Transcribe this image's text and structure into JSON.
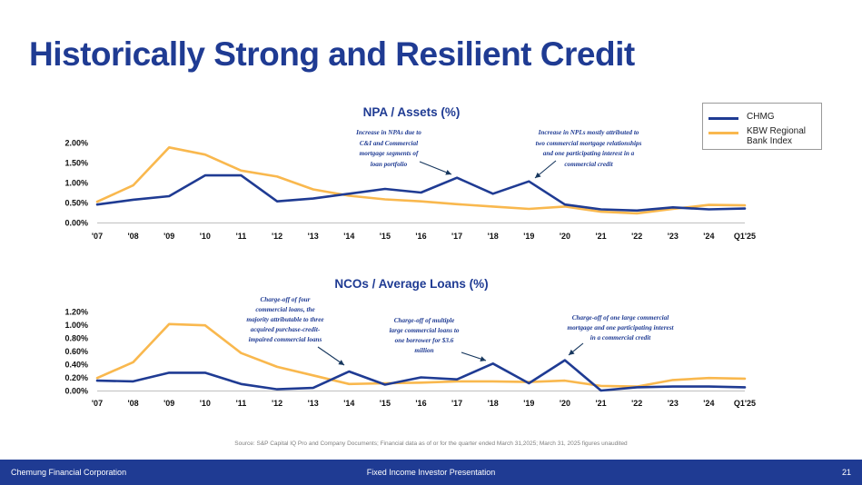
{
  "page": {
    "title": "Historically Strong and Resilient Credit",
    "source": "Source: S&P Capital IQ Pro and Company Documents; Financial data as of or for the quarter ended March 31,2025; March 31, 2025 figures unaudited",
    "footer": {
      "company": "Chemung Financial Corporation",
      "center": "Fixed Income Investor Presentation",
      "page_number": "21"
    },
    "legend": [
      {
        "name": "CHMG",
        "color": "#1F3B93"
      },
      {
        "name": "KBW Regional Bank Index",
        "color": "#F9B84E"
      }
    ]
  },
  "chart_data": [
    {
      "type": "line",
      "title": "NPA / Assets (%)",
      "categories": [
        "'07",
        "'08",
        "'09",
        "'10",
        "'11",
        "'12",
        "'13",
        "'14",
        "'15",
        "'16",
        "'17",
        "'18",
        "'19",
        "'20",
        "'21",
        "'22",
        "'23",
        "'24",
        "Q1'25"
      ],
      "y_ticks": [
        "0.00%",
        "0.50%",
        "1.00%",
        "1.50%",
        "2.00%"
      ],
      "ylim": [
        0,
        2.0
      ],
      "series": [
        {
          "name": "CHMG",
          "color": "#1F3B93",
          "values": [
            0.45,
            0.57,
            0.66,
            1.18,
            1.18,
            0.53,
            0.6,
            0.72,
            0.84,
            0.75,
            1.12,
            0.72,
            1.03,
            0.45,
            0.33,
            0.3,
            0.38,
            0.33,
            0.35
          ]
        },
        {
          "name": "KBW Regional Bank Index",
          "color": "#F9B84E",
          "values": [
            0.52,
            0.93,
            1.88,
            1.7,
            1.3,
            1.15,
            0.83,
            0.67,
            0.58,
            0.53,
            0.46,
            0.4,
            0.34,
            0.4,
            0.27,
            0.23,
            0.34,
            0.44,
            0.43
          ]
        }
      ],
      "annotations": [
        {
          "text": "Increase in NPAs due to C&I and Commercial mortgage segments of loan portfolio",
          "lines": [
            "Increase in NPAs due to",
            "C&I and Commercial",
            "mortgage segments of",
            "loan portfolio"
          ]
        },
        {
          "text": "Increase in NPLs mostly attributed to two commercial mortgage relationships and one participating interest in a commercial credit",
          "lines": [
            "Increase in NPLs mostly attributed to",
            "two commercial mortgage relationships",
            "and one participating interest in a",
            "commercial credit"
          ]
        }
      ]
    },
    {
      "type": "line",
      "title": "NCOs / Average Loans (%)",
      "categories": [
        "'07",
        "'08",
        "'09",
        "'10",
        "'11",
        "'12",
        "'13",
        "'14",
        "'15",
        "'16",
        "'17",
        "'18",
        "'19",
        "'20",
        "'21",
        "'22",
        "'23",
        "'24",
        "Q1'25"
      ],
      "y_ticks": [
        "0.00%",
        "0.20%",
        "0.40%",
        "0.60%",
        "0.80%",
        "1.00%",
        "1.20%"
      ],
      "ylim": [
        0,
        1.2
      ],
      "series": [
        {
          "name": "CHMG",
          "color": "#1F3B93",
          "values": [
            0.15,
            0.14,
            0.27,
            0.27,
            0.1,
            0.02,
            0.04,
            0.29,
            0.09,
            0.2,
            0.17,
            0.41,
            0.11,
            0.46,
            0.0,
            0.05,
            0.06,
            0.06,
            0.05
          ]
        },
        {
          "name": "KBW Regional Bank Index",
          "color": "#F9B84E",
          "values": [
            0.19,
            0.43,
            1.01,
            0.99,
            0.57,
            0.36,
            0.23,
            0.1,
            0.11,
            0.12,
            0.14,
            0.14,
            0.13,
            0.15,
            0.07,
            0.06,
            0.16,
            0.19,
            0.18
          ]
        }
      ],
      "annotations": [
        {
          "text": "Charge-off of four commercial loans, the majority attributable to three acquired purchase-credit-impaired commercial loans",
          "lines": [
            "Charge-off of four",
            "commercial loans, the",
            "majority attributable to three",
            "acquired purchase-credit-",
            "impaired commercial loans"
          ]
        },
        {
          "text": "Charge-off of multiple large commercial loans to one borrower for $3.6 million",
          "lines": [
            "Charge-off of multiple",
            "large commercial loans to",
            "one borrower for $3.6",
            "million"
          ]
        },
        {
          "text": "Charge-off of one large commercial mortgage and one participating interest in a commercial credit",
          "lines": [
            "Charge-off of one large commercial",
            "mortgage and one participating interest",
            "in a commercial credit"
          ]
        }
      ]
    }
  ]
}
